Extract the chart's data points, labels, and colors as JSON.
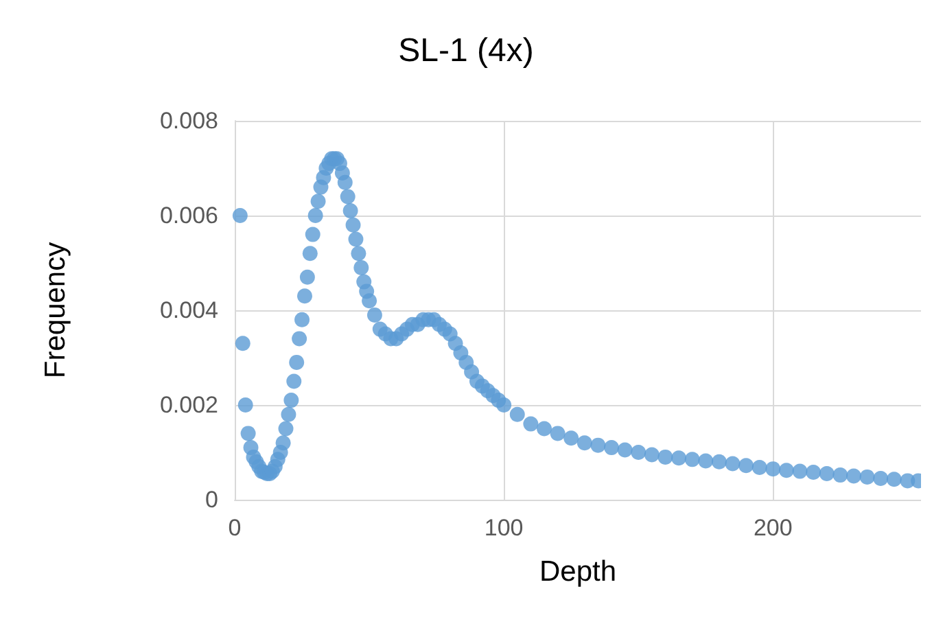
{
  "chart_data": {
    "type": "scatter",
    "title": "SL-1 (4x)",
    "xlabel": "Depth",
    "ylabel": "Frequency",
    "grid": true,
    "marker": "circle",
    "xlim": [
      0,
      255
    ],
    "xticks": [
      0,
      100,
      200
    ],
    "ylim": [
      0,
      0.008
    ],
    "yticks": [
      0,
      0.002,
      0.004,
      0.006,
      0.008
    ],
    "series": [
      {
        "color": "#5b9bd5",
        "x": [
          2,
          3,
          4,
          5,
          6,
          7,
          8,
          9,
          10,
          11,
          12,
          13,
          14,
          15,
          16,
          17,
          18,
          19,
          20,
          21,
          22,
          23,
          24,
          25,
          26,
          27,
          28,
          29,
          30,
          31,
          32,
          33,
          34,
          35,
          36,
          37,
          38,
          39,
          40,
          41,
          42,
          43,
          44,
          45,
          46,
          47,
          48,
          49,
          50,
          52,
          54,
          56,
          58,
          60,
          62,
          64,
          66,
          68,
          70,
          72,
          74,
          76,
          78,
          80,
          82,
          84,
          86,
          88,
          90,
          92,
          94,
          96,
          98,
          100,
          105,
          110,
          115,
          120,
          125,
          130,
          135,
          140,
          145,
          150,
          155,
          160,
          165,
          170,
          175,
          180,
          185,
          190,
          195,
          200,
          205,
          210,
          215,
          220,
          225,
          230,
          235,
          240,
          245,
          250,
          254
        ],
        "values": [
          0.006,
          0.0033,
          0.002,
          0.0014,
          0.0011,
          0.0009,
          0.0008,
          0.0007,
          0.0006,
          0.00058,
          0.00055,
          0.00055,
          0.0006,
          0.0007,
          0.00085,
          0.001,
          0.0012,
          0.0015,
          0.0018,
          0.0021,
          0.0025,
          0.0029,
          0.0034,
          0.0038,
          0.0043,
          0.0047,
          0.0052,
          0.0056,
          0.006,
          0.0063,
          0.0066,
          0.0068,
          0.007,
          0.0071,
          0.0072,
          0.0072,
          0.0072,
          0.0071,
          0.0069,
          0.0067,
          0.0064,
          0.0061,
          0.0058,
          0.0055,
          0.0052,
          0.0049,
          0.0046,
          0.0044,
          0.0042,
          0.0039,
          0.0036,
          0.0035,
          0.0034,
          0.0034,
          0.0035,
          0.0036,
          0.0037,
          0.0037,
          0.0038,
          0.0038,
          0.0038,
          0.0037,
          0.0036,
          0.0035,
          0.0033,
          0.0031,
          0.0029,
          0.0027,
          0.0025,
          0.0024,
          0.0023,
          0.0022,
          0.0021,
          0.002,
          0.0018,
          0.0016,
          0.0015,
          0.0014,
          0.0013,
          0.0012,
          0.00115,
          0.0011,
          0.00105,
          0.001,
          0.00095,
          0.0009,
          0.00088,
          0.00085,
          0.00082,
          0.0008,
          0.00076,
          0.00072,
          0.00068,
          0.00065,
          0.00062,
          0.0006,
          0.00058,
          0.00055,
          0.00052,
          0.0005,
          0.00048,
          0.00045,
          0.00043,
          0.0004,
          0.0004
        ]
      }
    ]
  }
}
